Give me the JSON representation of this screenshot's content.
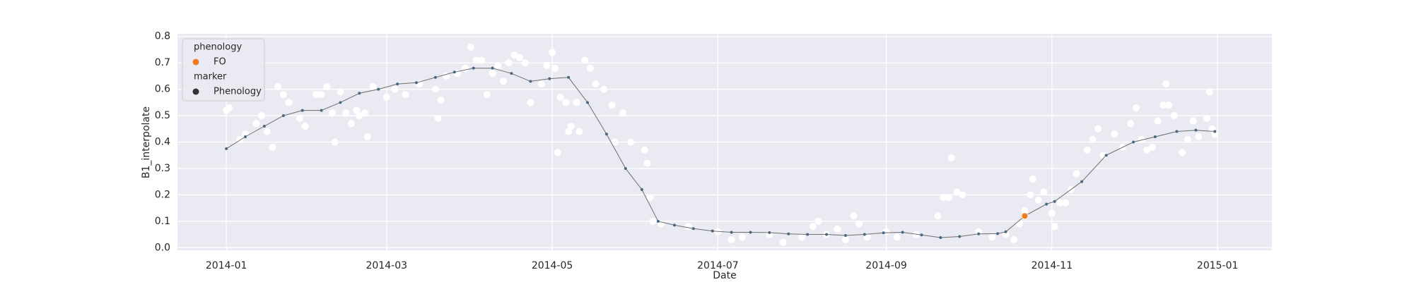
{
  "chart_data": {
    "type": "line",
    "x_label": "Date",
    "y_label": "B1_interpolate",
    "xlim": [
      "2013-12-14",
      "2015-01-21"
    ],
    "xticks": [
      {
        "value": "2014-01-01",
        "label": "2014-01"
      },
      {
        "value": "2014-03-01",
        "label": "2014-03"
      },
      {
        "value": "2014-05-01",
        "label": "2014-05"
      },
      {
        "value": "2014-07-01",
        "label": "2014-07"
      },
      {
        "value": "2014-09-01",
        "label": "2014-09"
      },
      {
        "value": "2014-11-01",
        "label": "2014-11"
      },
      {
        "value": "2015-01-01",
        "label": "2015-01"
      }
    ],
    "ylim": [
      -0.01,
      0.81
    ],
    "yticks": [
      {
        "value": 0,
        "label": "0.0"
      },
      0.1,
      0.2,
      0.3,
      0.4,
      0.5,
      0.6,
      0.7,
      0.8
    ],
    "grid": true,
    "background": "#eaeaf2",
    "series": [
      {
        "style": "scatter",
        "color": "#ffffff",
        "x": [
          "2014-01-01",
          "2014-01-02",
          "2014-01-06",
          "2014-01-08",
          "2014-01-12",
          "2014-01-14",
          "2014-01-16",
          "2014-01-18",
          "2014-01-20",
          "2014-01-22",
          "2014-01-24",
          "2014-01-28",
          "2014-01-30",
          "2014-02-03",
          "2014-02-05",
          "2014-02-07",
          "2014-02-09",
          "2014-02-10",
          "2014-02-12",
          "2014-02-14",
          "2014-02-16",
          "2014-02-18",
          "2014-02-19",
          "2014-02-21",
          "2014-02-22",
          "2014-02-24",
          "2014-03-01",
          "2014-03-04",
          "2014-03-08",
          "2014-03-13",
          "2014-03-19",
          "2014-03-20",
          "2014-03-21",
          "2014-03-23",
          "2014-03-27",
          "2014-03-30",
          "2014-04-01",
          "2014-04-03",
          "2014-04-05",
          "2014-04-07",
          "2014-04-09",
          "2014-04-11",
          "2014-04-13",
          "2014-04-15",
          "2014-04-17",
          "2014-04-19",
          "2014-04-21",
          "2014-04-23",
          "2014-04-27",
          "2014-04-29",
          "2014-05-01",
          "2014-05-02",
          "2014-05-03",
          "2014-05-04",
          "2014-05-06",
          "2014-05-07",
          "2014-05-08",
          "2014-05-10",
          "2014-05-11",
          "2014-05-13",
          "2014-05-15",
          "2014-05-17",
          "2014-05-20",
          "2014-05-23",
          "2014-05-24",
          "2014-05-27",
          "2014-05-30",
          "2014-06-04",
          "2014-06-05",
          "2014-06-06",
          "2014-06-07",
          "2014-06-10",
          "2014-06-20",
          "2014-07-01",
          "2014-07-06",
          "2014-07-10",
          "2014-07-20",
          "2014-07-25",
          "2014-08-01",
          "2014-08-05",
          "2014-08-07",
          "2014-08-10",
          "2014-08-14",
          "2014-08-17",
          "2014-08-20",
          "2014-08-22",
          "2014-08-25",
          "2014-09-01",
          "2014-09-05",
          "2014-09-12",
          "2014-09-20",
          "2014-09-22",
          "2014-09-24",
          "2014-09-25",
          "2014-09-27",
          "2014-09-29",
          "2014-10-05",
          "2014-10-10",
          "2014-10-15",
          "2014-10-18",
          "2014-10-20",
          "2014-10-22",
          "2014-10-24",
          "2014-10-25",
          "2014-10-27",
          "2014-10-29",
          "2014-11-01",
          "2014-11-02",
          "2014-11-04",
          "2014-11-06",
          "2014-11-08",
          "2014-11-10",
          "2014-11-14",
          "2014-11-16",
          "2014-11-18",
          "2014-11-20",
          "2014-11-24",
          "2014-11-27",
          "2014-11-30",
          "2014-12-02",
          "2014-12-04",
          "2014-12-06",
          "2014-12-08",
          "2014-12-10",
          "2014-12-12",
          "2014-12-13",
          "2014-12-14",
          "2014-12-16",
          "2014-12-19",
          "2014-12-21",
          "2014-12-23",
          "2014-12-25",
          "2014-12-28",
          "2014-12-29",
          "2014-12-30",
          "2014-12-31"
        ],
        "values": [
          0.52,
          0.53,
          0.41,
          0.43,
          0.47,
          0.5,
          0.44,
          0.38,
          0.61,
          0.58,
          0.55,
          0.49,
          0.46,
          0.58,
          0.58,
          0.61,
          0.51,
          0.4,
          0.59,
          0.51,
          0.47,
          0.52,
          0.5,
          0.51,
          0.42,
          0.61,
          0.57,
          0.6,
          0.58,
          0.62,
          0.6,
          0.49,
          0.56,
          0.65,
          0.66,
          0.68,
          0.76,
          0.71,
          0.71,
          0.58,
          0.66,
          0.69,
          0.63,
          0.7,
          0.73,
          0.72,
          0.7,
          0.55,
          0.62,
          0.69,
          0.74,
          0.68,
          0.36,
          0.57,
          0.55,
          0.44,
          0.46,
          0.55,
          0.44,
          0.71,
          0.68,
          0.62,
          0.6,
          0.54,
          0.4,
          0.51,
          0.4,
          0.37,
          0.32,
          0.19,
          0.1,
          0.09,
          0.08,
          0.06,
          0.03,
          0.04,
          0.05,
          0.02,
          0.04,
          0.08,
          0.1,
          0.05,
          0.07,
          0.03,
          0.12,
          0.09,
          0.04,
          0.06,
          0.04,
          0.05,
          0.12,
          0.19,
          0.19,
          0.34,
          0.21,
          0.2,
          0.06,
          0.04,
          0.05,
          0.03,
          0.09,
          0.14,
          0.2,
          0.26,
          0.18,
          0.21,
          0.13,
          0.08,
          0.17,
          0.17,
          0.22,
          0.28,
          0.37,
          0.41,
          0.45,
          0.35,
          0.43,
          0.38,
          0.47,
          0.53,
          0.41,
          0.37,
          0.38,
          0.48,
          0.54,
          0.62,
          0.54,
          0.5,
          0.36,
          0.41,
          0.48,
          0.42,
          0.49,
          0.59,
          0.45,
          0.43
        ]
      },
      {
        "style": "line",
        "color": "#4a6880",
        "x": [
          "2014-01-01",
          "2014-01-08",
          "2014-01-15",
          "2014-01-22",
          "2014-01-29",
          "2014-02-05",
          "2014-02-12",
          "2014-02-19",
          "2014-02-26",
          "2014-03-05",
          "2014-03-12",
          "2014-03-19",
          "2014-03-26",
          "2014-04-02",
          "2014-04-09",
          "2014-04-16",
          "2014-04-23",
          "2014-04-30",
          "2014-05-07",
          "2014-05-14",
          "2014-05-21",
          "2014-05-28",
          "2014-06-03",
          "2014-06-09",
          "2014-06-15",
          "2014-06-22",
          "2014-06-29",
          "2014-07-06",
          "2014-07-13",
          "2014-07-20",
          "2014-07-27",
          "2014-08-03",
          "2014-08-10",
          "2014-08-17",
          "2014-08-24",
          "2014-08-31",
          "2014-09-07",
          "2014-09-14",
          "2014-09-21",
          "2014-09-28",
          "2014-10-05",
          "2014-10-12",
          "2014-10-15",
          "2014-10-22",
          "2014-10-30",
          "2014-11-02",
          "2014-11-12",
          "2014-11-21",
          "2014-12-01",
          "2014-12-09",
          "2014-12-17",
          "2014-12-24",
          "2014-12-31"
        ],
        "values": [
          0.375,
          0.42,
          0.46,
          0.5,
          0.52,
          0.52,
          0.55,
          0.585,
          0.6,
          0.62,
          0.625,
          0.645,
          0.665,
          0.68,
          0.68,
          0.66,
          0.63,
          0.64,
          0.645,
          0.55,
          0.43,
          0.3,
          0.22,
          0.1,
          0.085,
          0.072,
          0.063,
          0.058,
          0.058,
          0.057,
          0.052,
          0.05,
          0.05,
          0.046,
          0.05,
          0.056,
          0.058,
          0.048,
          0.038,
          0.042,
          0.052,
          0.053,
          0.06,
          0.12,
          0.165,
          0.175,
          0.25,
          0.35,
          0.4,
          0.42,
          0.44,
          0.445,
          0.44
        ]
      },
      {
        "style": "scatter",
        "color": "#f27b20",
        "x": [
          "2014-10-22"
        ],
        "values": [
          0.12
        ]
      }
    ],
    "legend": {
      "loc": "upper left",
      "groups": [
        {
          "title": "phenology",
          "labels": [
            "FO"
          ],
          "colors": [
            "#f27b20"
          ]
        },
        {
          "title": "marker",
          "labels": [
            "Phenology"
          ],
          "colors": [
            "#333333"
          ]
        }
      ]
    }
  }
}
